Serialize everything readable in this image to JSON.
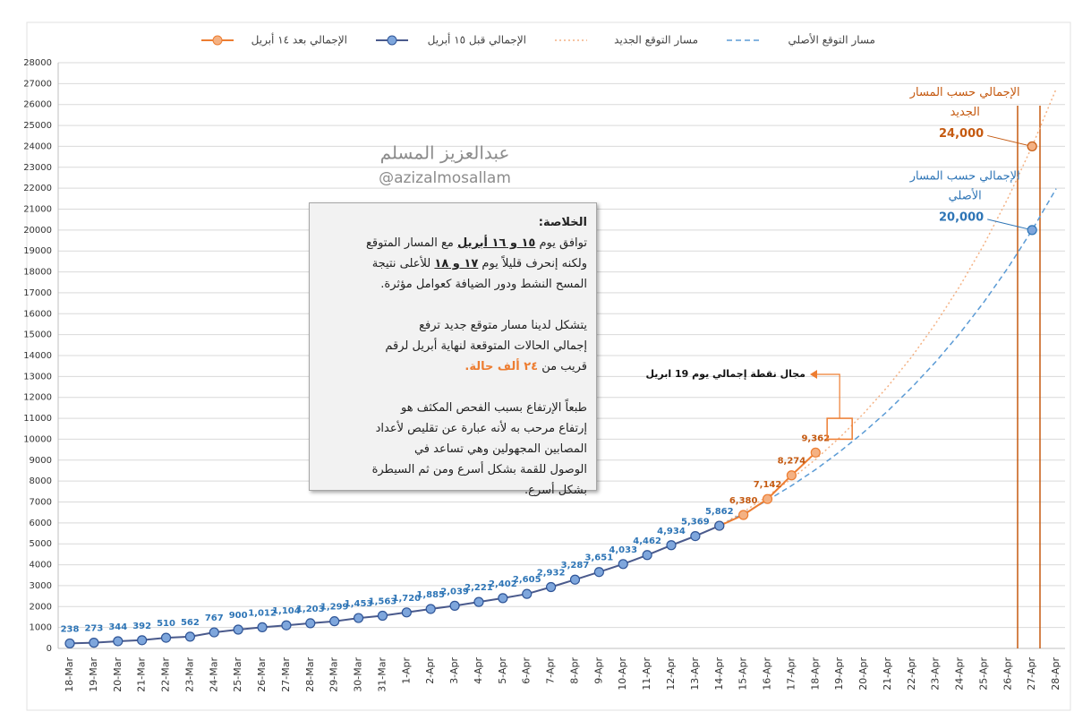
{
  "chart_data": {
    "type": "line",
    "categories": [
      "18-Mar",
      "19-Mar",
      "20-Mar",
      "21-Mar",
      "22-Mar",
      "23-Mar",
      "24-Mar",
      "25-Mar",
      "26-Mar",
      "27-Mar",
      "28-Mar",
      "29-Mar",
      "30-Mar",
      "31-Mar",
      "1-Apr",
      "2-Apr",
      "3-Apr",
      "4-Apr",
      "5-Apr",
      "6-Apr",
      "7-Apr",
      "8-Apr",
      "9-Apr",
      "10-Apr",
      "11-Apr",
      "12-Apr",
      "13-Apr",
      "14-Apr",
      "15-Apr",
      "16-Apr",
      "17-Apr",
      "18-Apr",
      "19-Apr",
      "20-Apr",
      "21-Apr",
      "22-Apr",
      "23-Apr",
      "24-Apr",
      "25-Apr",
      "26-Apr",
      "27-Apr",
      "28-Apr"
    ],
    "ylim": [
      0,
      28000
    ],
    "yticks": [
      0,
      1000,
      2000,
      3000,
      4000,
      5000,
      6000,
      7000,
      8000,
      9000,
      10000,
      11000,
      12000,
      13000,
      14000,
      15000,
      16000,
      17000,
      18000,
      19000,
      20000,
      21000,
      22000,
      23000,
      24000,
      25000,
      26000,
      27000,
      28000
    ],
    "grid": true,
    "series": [
      {
        "name": "الإجمالي بعد ١٤ أبريل",
        "color": "#ed7d31",
        "style": "marker",
        "values": [
          null,
          null,
          null,
          null,
          null,
          null,
          null,
          null,
          null,
          null,
          null,
          null,
          null,
          null,
          null,
          null,
          null,
          null,
          null,
          null,
          null,
          null,
          null,
          null,
          null,
          null,
          null,
          5862,
          6380,
          7142,
          8274,
          9362,
          null,
          null,
          null,
          null,
          null,
          null,
          null,
          null,
          null,
          null
        ],
        "value_labels": [
          null,
          null,
          null,
          null,
          null,
          null,
          null,
          null,
          null,
          null,
          null,
          null,
          null,
          null,
          null,
          null,
          null,
          null,
          null,
          null,
          null,
          null,
          null,
          null,
          null,
          null,
          null,
          null,
          "6,380",
          "7,142",
          "8,274",
          "9,362",
          null,
          null,
          null,
          null,
          null,
          null,
          null,
          null,
          null,
          null
        ]
      },
      {
        "name": "الإجمالي قبل ١٥ أبريل",
        "color": "#2e75b6",
        "style": "marker",
        "values": [
          238,
          273,
          344,
          392,
          510,
          562,
          767,
          900,
          1012,
          1104,
          1203,
          1299,
          1453,
          1563,
          1720,
          1885,
          2039,
          2221,
          2402,
          2605,
          2932,
          3287,
          3651,
          4033,
          4462,
          4934,
          5369,
          5862,
          null,
          null,
          null,
          null,
          null,
          null,
          null,
          null,
          null,
          null,
          null,
          null,
          null,
          null
        ],
        "value_labels": [
          "238",
          "273",
          "344",
          "392",
          "510",
          "562",
          "767",
          "900",
          "1,012",
          "1,104",
          "1,203",
          "1,299",
          "1,453",
          "1,563",
          "1,720",
          "1,885",
          "2,039",
          "2,221",
          "2,402",
          "2,605",
          "2,932",
          "3,287",
          "3,651",
          "4,033",
          "4,462",
          "4,934",
          "5,369",
          "5,862",
          null,
          null,
          null,
          null,
          null,
          null,
          null,
          null,
          null,
          null,
          null,
          null,
          null,
          null
        ]
      },
      {
        "name": "مسار التوقع الجديد",
        "color": "#f4b183",
        "style": "dotted",
        "values": [
          null,
          null,
          null,
          null,
          null,
          null,
          null,
          null,
          null,
          null,
          null,
          null,
          null,
          null,
          null,
          null,
          null,
          null,
          null,
          null,
          null,
          null,
          null,
          null,
          null,
          null,
          null,
          5862,
          6530,
          7280,
          8110,
          9040,
          10080,
          11230,
          12520,
          13950,
          15550,
          17330,
          19310,
          21530,
          24000,
          26750
        ]
      },
      {
        "name": "مسار التوقع الأصلي",
        "color": "#5b9bd5",
        "style": "dashed",
        "values": [
          null,
          null,
          null,
          null,
          null,
          null,
          null,
          null,
          null,
          null,
          null,
          null,
          null,
          null,
          null,
          null,
          null,
          null,
          null,
          null,
          null,
          null,
          null,
          null,
          null,
          null,
          null,
          5862,
          6440,
          7080,
          7780,
          8550,
          9400,
          10330,
          11350,
          12480,
          13710,
          15070,
          16560,
          18200,
          20000,
          21980
        ]
      }
    ],
    "highlights": [
      {
        "x": "27-Apr",
        "value": 24000,
        "label": "24,000",
        "text": [
          "الإجمالي حسب المسار",
          "الجديد"
        ],
        "color": "#c55a11"
      },
      {
        "x": "27-Apr",
        "value": 20000,
        "label": "20,000",
        "text": [
          "الإجمالي حسب المسار",
          "الأصلي"
        ],
        "color": "#2e75b6"
      }
    ],
    "range_box": {
      "x": "19-Apr",
      "low": 10000,
      "high": 11000,
      "label": "مجال نقطة إجمالي يوم 19 ابريل",
      "color": "#ed7d31"
    },
    "watermark": [
      "عبدالعزيز المسلم",
      "@azizalmosallam"
    ],
    "summary": {
      "heading": "الخلاصة:",
      "paragraphs": [
        [
          [
            {
              "text": "توافق يوم "
            },
            {
              "text": "١٥ و ١٦ أبريل",
              "style": "u"
            },
            {
              "text": " مع المسار المتوقع"
            }
          ],
          [
            {
              "text": "ولكنه إنحرف قليلاً يوم "
            },
            {
              "text": "١٧ و ١٨",
              "style": "u"
            },
            {
              "text": " للأعلى نتيجة"
            }
          ],
          [
            {
              "text": "المسح النشط ودور الضيافة كعوامل مؤثرة."
            }
          ]
        ],
        [
          [
            {
              "text": "يتشكل لدينا مسار متوقع جديد ترفع"
            }
          ],
          [
            {
              "text": "إجمالي الحالات المتوقعة لنهاية أبريل لرقم"
            }
          ],
          [
            {
              "text": "قريب من "
            },
            {
              "text": "٢٤ ألف حالة.",
              "style": "o"
            }
          ]
        ],
        [
          [
            {
              "text": "طبعاً الإرتفاع بسبب الفحص المكثف هو"
            }
          ],
          [
            {
              "text": "إرتفاع مرحب به لأنه عبارة عن تقليص لأعداد"
            }
          ],
          [
            {
              "text": "المصابين المجهولين وهي تساعد في"
            }
          ],
          [
            {
              "text": "الوصول للقمة بشكل أسرع ومن ثم السيطرة"
            }
          ],
          [
            {
              "text": "بشكل أسرع."
            }
          ]
        ]
      ]
    }
  }
}
